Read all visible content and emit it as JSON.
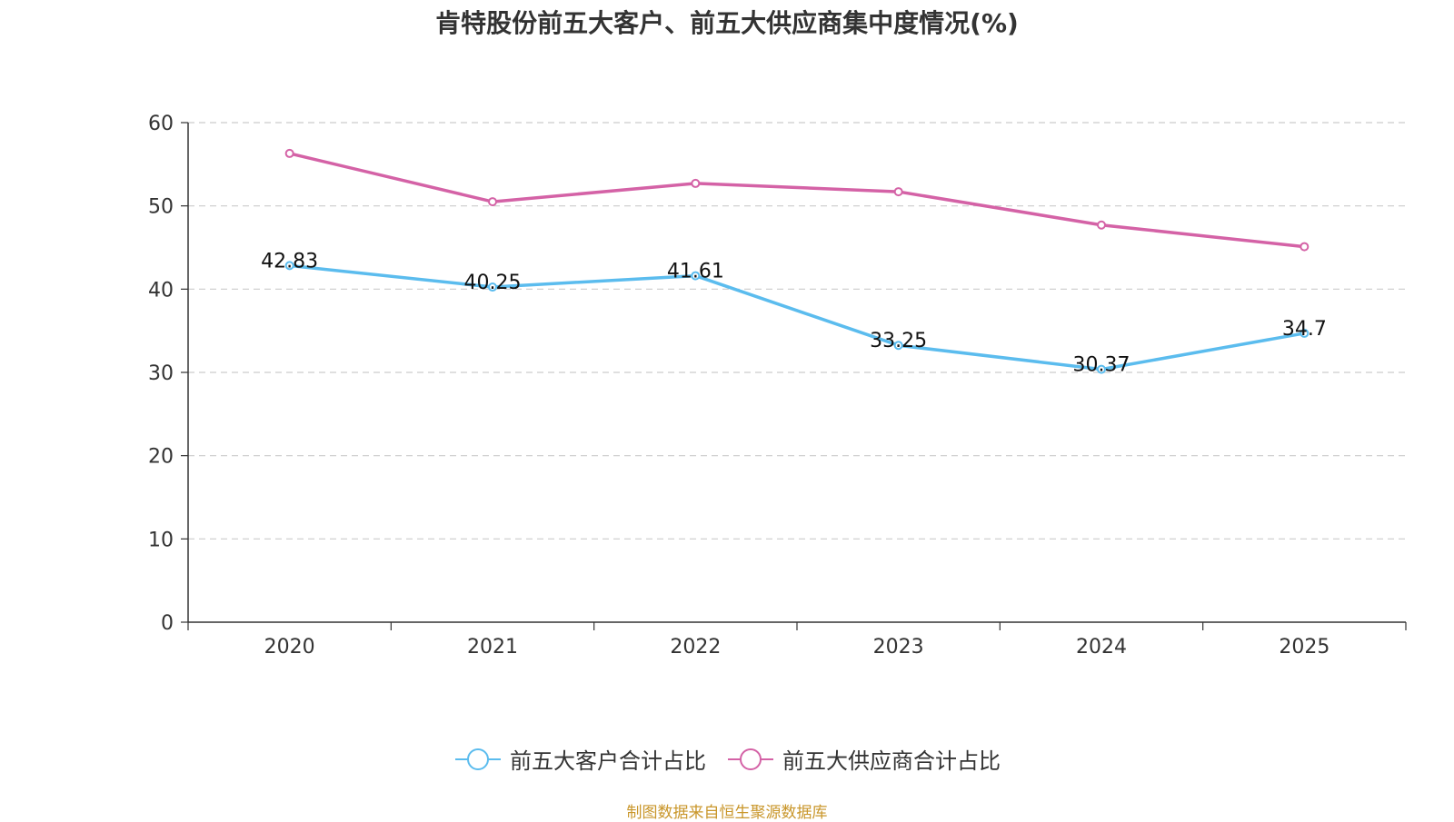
{
  "chart_data": {
    "type": "line",
    "title": "肯特股份前五大客户、前五大供应商集中度情况(%)",
    "categories": [
      "2020",
      "2021",
      "2022",
      "2023",
      "2024",
      "2025"
    ],
    "series": [
      {
        "name": "前五大客户合计占比",
        "values": [
          42.83,
          40.25,
          41.61,
          33.25,
          30.37,
          34.7
        ],
        "labels": [
          "42.83",
          "40.25",
          "41.61",
          "33.25",
          "30.37",
          "34.7"
        ],
        "color": "#5bbcee",
        "show_labels": true
      },
      {
        "name": "前五大供应商合计占比",
        "values": [
          56.3,
          50.5,
          52.7,
          51.7,
          47.7,
          45.1
        ],
        "color": "#d462a6",
        "show_labels": false
      }
    ],
    "yticks": [
      "0",
      "10",
      "20",
      "30",
      "40",
      "50",
      "60"
    ],
    "ylim": [
      0,
      60
    ],
    "xlabel": "",
    "ylabel": "",
    "grid": true,
    "legend_position": "bottom"
  },
  "source": "制图数据来自恒生聚源数据库"
}
